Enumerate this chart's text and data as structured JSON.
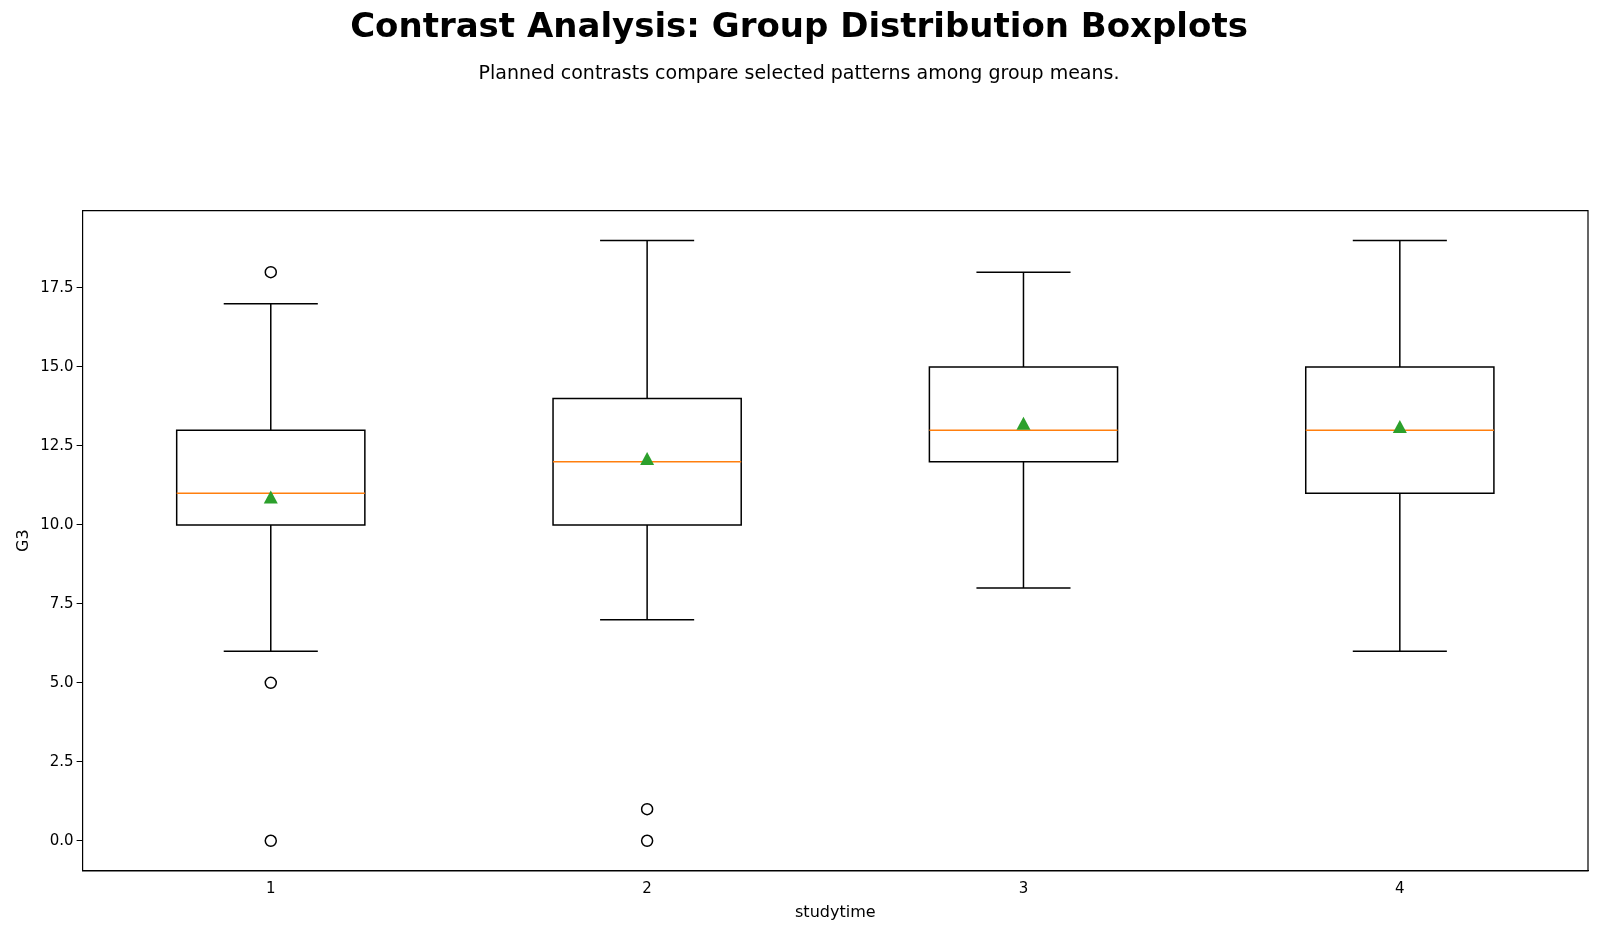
{
  "chart_data": {
    "type": "box",
    "title": "Contrast Analysis: Group Distribution Boxplots",
    "subtitle": "Planned contrasts compare selected patterns among group means.",
    "xlabel": "studytime",
    "ylabel": "G3",
    "categories": [
      "1",
      "2",
      "3",
      "4"
    ],
    "series": [
      {
        "color": "#000000",
        "boxes": [
          {
            "low": 6,
            "q1": 10,
            "median": 11,
            "q3": 13,
            "high": 17,
            "mean": 10.87,
            "outliers": [
              18,
              5,
              0
            ]
          },
          {
            "low": 7,
            "q1": 10,
            "median": 12,
            "q3": 14,
            "high": 19,
            "mean": 12.09,
            "outliers": [
              1,
              0
            ]
          },
          {
            "low": 8,
            "q1": 12,
            "median": 13,
            "q3": 15,
            "high": 18,
            "mean": 13.2
          },
          {
            "low": 6,
            "q1": 11,
            "median": 13,
            "q3": 15,
            "high": 19,
            "mean": 13.1
          }
        ]
      }
    ],
    "ylim": [
      -0.95,
      19.95
    ],
    "yticks": [
      {
        "value": 0,
        "label": "0.0"
      },
      {
        "value": 2.5,
        "label": "2.5"
      },
      {
        "value": 5,
        "label": "5.0"
      },
      {
        "value": 7.5,
        "label": "7.5"
      },
      {
        "value": 10,
        "label": "10.0"
      },
      {
        "value": 12.5,
        "label": "12.5"
      },
      {
        "value": 15,
        "label": "15.0"
      },
      {
        "value": 17.5,
        "label": "17.5"
      }
    ],
    "grid": false,
    "legend": false
  }
}
